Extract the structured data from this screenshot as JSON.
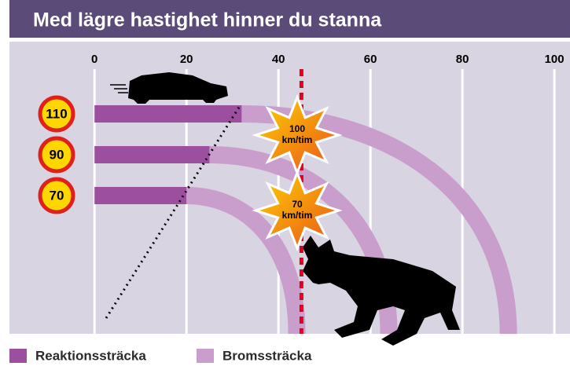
{
  "chart_data": {
    "type": "stacked-curve",
    "title": "Med lägre hastighet hinner du stanna",
    "categories": [
      "110",
      "90",
      "70"
    ],
    "series": [
      {
        "name": "Reaktionssträcka",
        "color": "#9c4f9f",
        "values": [
          32,
          25,
          20
        ]
      },
      {
        "name": "Bromssträcka",
        "color": "#c99dcc",
        "values": [
          58,
          39,
          24
        ]
      }
    ],
    "xlim": [
      -18.5,
      103.4
    ],
    "xticks": [
      0,
      20,
      40,
      60,
      80,
      100
    ],
    "reference_line": 45,
    "annotations": [
      {
        "lines": [
          "100",
          "km/tim"
        ]
      },
      {
        "lines": [
          "70",
          "km/tim"
        ]
      }
    ]
  }
}
